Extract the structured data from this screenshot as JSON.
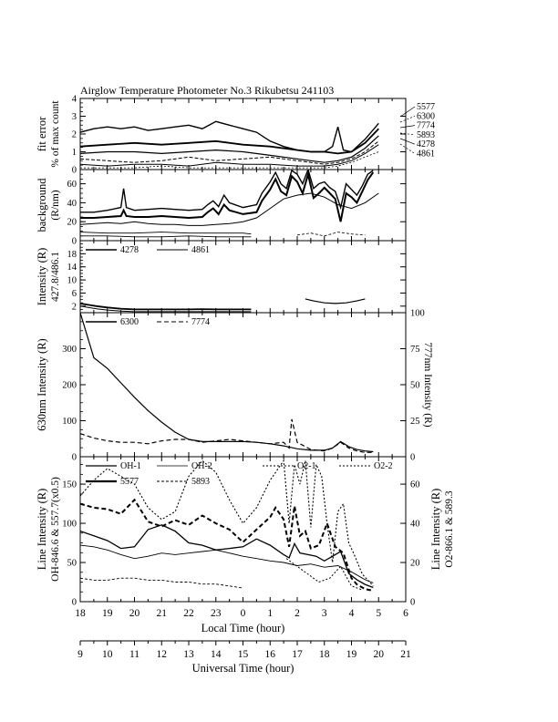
{
  "title": "Airglow Temperature Photometer No.3   Rikubetsu    241103",
  "x_axis": {
    "local_label": "Local Time (hour)",
    "local_ticks": [
      "18",
      "19",
      "20",
      "21",
      "22",
      "23",
      "0",
      "1",
      "2",
      "3",
      "4",
      "5",
      "6"
    ],
    "ut_label": "Universal Time (hour)",
    "ut_ticks": [
      "9",
      "10",
      "11",
      "12",
      "13",
      "14",
      "15",
      "16",
      "17",
      "18",
      "19",
      "20",
      "21"
    ]
  },
  "colors": {
    "line": "#000000",
    "background": "#ffffff"
  },
  "chart_data": [
    {
      "type": "line",
      "panel": "fit-error",
      "ylabel": "fit error",
      "ylabel2": "% of max count",
      "yticks": [
        "0",
        "1",
        "2",
        "3",
        "4"
      ],
      "ylim": [
        0,
        4
      ],
      "right_labels": [
        "5577",
        "6300",
        "7774",
        "5893",
        "4278",
        "4861"
      ],
      "x_units": "hours since 18 LT",
      "series": [
        {
          "name": "5577",
          "x": [
            0,
            0.5,
            1,
            1.5,
            2,
            2.5,
            3,
            3.5,
            4,
            4.5,
            5,
            5.5,
            6,
            6.5,
            7,
            7.5,
            8,
            8.5,
            9,
            9.3,
            9.5,
            9.7,
            10,
            10.5,
            11
          ],
          "y": [
            2.1,
            2.3,
            2.4,
            2.3,
            2.4,
            2.2,
            2.3,
            2.4,
            2.5,
            2.3,
            2.7,
            2.5,
            2.3,
            2.1,
            1.6,
            1.3,
            1.1,
            1.0,
            1.0,
            1.3,
            2.4,
            1.1,
            1.0,
            1.7,
            2.6
          ]
        },
        {
          "name": "6300",
          "x": [
            0,
            1,
            2,
            3,
            4,
            5,
            6,
            7,
            8,
            8.5,
            9,
            9.5,
            10,
            10.5,
            11
          ],
          "y": [
            1.3,
            1.4,
            1.5,
            1.4,
            1.5,
            1.6,
            1.4,
            1.3,
            1.1,
            1.0,
            1.0,
            0.9,
            1.0,
            1.5,
            2.3
          ]
        },
        {
          "name": "7774",
          "x": [
            0,
            1,
            2,
            3,
            4,
            5,
            6,
            7,
            8,
            8.5,
            9,
            9.5,
            10,
            10.5,
            11
          ],
          "y": [
            0.9,
            1.0,
            1.0,
            0.9,
            1.0,
            1.1,
            1.0,
            0.8,
            0.6,
            0.5,
            0.4,
            0.5,
            0.7,
            1.2,
            1.9
          ]
        },
        {
          "name": "5893",
          "x": [
            0,
            1,
            2,
            3,
            4,
            5,
            6,
            7,
            8,
            8.5,
            9,
            9.5,
            10,
            10.5,
            11
          ],
          "y": [
            0.6,
            0.5,
            0.4,
            0.5,
            0.7,
            0.5,
            0.6,
            0.7,
            0.5,
            0.4,
            0.3,
            0.4,
            0.6,
            1.0,
            1.6
          ]
        },
        {
          "name": "4278",
          "x": [
            0,
            1,
            2,
            3,
            4,
            5,
            6,
            7,
            8,
            9,
            9.5,
            10,
            10.5,
            11
          ],
          "y": [
            0.3,
            0.2,
            0.3,
            0.3,
            0.2,
            0.4,
            0.3,
            0.3,
            0.2,
            0.2,
            0.3,
            0.5,
            0.9,
            1.4
          ]
        },
        {
          "name": "4861",
          "x": [
            0,
            1,
            2,
            3,
            4,
            5,
            6,
            7,
            8,
            9,
            9.5,
            10,
            10.5,
            11
          ],
          "y": [
            0.1,
            0.1,
            0.1,
            0.2,
            0.1,
            0.1,
            0.1,
            0.1,
            0.1,
            0.1,
            0.2,
            0.4,
            0.7,
            1.0
          ]
        }
      ]
    },
    {
      "type": "line",
      "panel": "background",
      "ylabel": "background",
      "ylabel2": "(R/nm)",
      "yticks": [
        "0",
        "20",
        "40",
        "60"
      ],
      "ylim": [
        0,
        75
      ],
      "series": [
        {
          "name": "OH-1",
          "x": [
            0,
            0.5,
            1,
            1.5,
            1.6,
            1.7,
            2,
            2.5,
            3,
            3.5,
            4,
            4.5,
            4.7,
            4.9,
            5.1,
            5.3,
            5.5,
            6,
            6.5,
            6.7,
            7,
            7.2,
            7.4,
            7.6,
            7.8,
            8,
            8.2,
            8.4,
            8.6,
            8.8,
            9,
            9.2,
            9.4,
            9.6,
            9.8,
            10,
            10.2,
            10.4,
            10.6,
            10.8
          ],
          "y": [
            30,
            30,
            32,
            35,
            55,
            35,
            32,
            33,
            34,
            33,
            32,
            33,
            38,
            42,
            36,
            48,
            40,
            35,
            38,
            50,
            62,
            72,
            60,
            55,
            74,
            70,
            60,
            75,
            55,
            60,
            62,
            56,
            52,
            35,
            60,
            54,
            48,
            58,
            70,
            74
          ]
        },
        {
          "name": "OH-2",
          "x": [
            0,
            0.5,
            1,
            1.5,
            1.6,
            1.7,
            2,
            2.5,
            3,
            3.5,
            4,
            4.5,
            4.7,
            4.9,
            5.1,
            5.3,
            5.5,
            6,
            6.5,
            6.7,
            7,
            7.2,
            7.4,
            7.6,
            7.8,
            8,
            8.2,
            8.4,
            8.6,
            8.8,
            9,
            9.2,
            9.4,
            9.6,
            9.8,
            10,
            10.2,
            10.4,
            10.6,
            10.8
          ],
          "y": [
            24,
            24,
            25,
            26,
            32,
            26,
            25,
            25,
            26,
            25,
            24,
            25,
            30,
            34,
            28,
            38,
            32,
            28,
            30,
            42,
            54,
            65,
            52,
            48,
            68,
            62,
            50,
            70,
            45,
            50,
            56,
            50,
            44,
            20,
            50,
            46,
            40,
            52,
            64,
            72
          ]
        },
        {
          "name": "O2-1",
          "x": [
            0,
            0.5,
            1,
            1.5,
            2,
            2.5,
            3,
            3.5,
            4,
            4.5,
            5,
            5.5,
            6,
            6.5,
            7,
            7.5,
            8,
            8.5,
            9,
            9.5,
            10,
            10.5,
            11
          ],
          "y": [
            17,
            18,
            19,
            18,
            20,
            18,
            17,
            17,
            16,
            16,
            17,
            18,
            20,
            24,
            34,
            44,
            48,
            50,
            46,
            38,
            34,
            40,
            50
          ]
        },
        {
          "name": "O2-2",
          "x": [
            0,
            1,
            2,
            3,
            4,
            5,
            6,
            6.3
          ],
          "y": [
            9,
            8,
            8,
            9,
            8,
            8,
            8,
            7
          ]
        },
        {
          "name": "5577",
          "x": [
            0,
            1,
            2,
            3,
            4,
            5,
            6,
            6.3
          ],
          "y": [
            5,
            5,
            4,
            4,
            5,
            4,
            4,
            4
          ]
        },
        {
          "name": "5893",
          "x": [
            8,
            8.5,
            9,
            9.5,
            10,
            10.5
          ],
          "y": [
            6,
            8,
            5,
            9,
            7,
            6
          ]
        }
      ]
    },
    {
      "type": "line",
      "panel": "blue-green-intensity",
      "ylabel": "Intensity (R)",
      "ylabel2": "427.8/486.1",
      "yticks": [
        "2",
        "6",
        "10",
        "14",
        "18"
      ],
      "ylim": [
        0,
        22
      ],
      "legend": [
        "4278",
        "4861"
      ],
      "series": [
        {
          "name": "4278",
          "x": [
            0,
            0.3,
            0.6,
            1,
            1.5,
            2,
            3,
            4,
            4.5,
            5,
            5.5,
            6,
            6.3
          ],
          "y": [
            2.8,
            2.4,
            2.0,
            1.6,
            1.2,
            1.0,
            1.0,
            1.0,
            1.1,
            1.0,
            1.0,
            1.0,
            1.0
          ]
        },
        {
          "name": "4861",
          "x": [
            0,
            0.3,
            0.6,
            1,
            1.5,
            2,
            3,
            4,
            5,
            6,
            6.3
          ],
          "y": [
            2.0,
            1.6,
            1.2,
            0.8,
            0.5,
            0.3,
            0.3,
            0.3,
            0.3,
            0.3,
            0.3
          ]
        },
        {
          "name": "4278-dawn",
          "x": [
            8.3,
            8.6,
            9,
            9.4,
            9.8,
            10.2,
            10.5
          ],
          "y": [
            4.2,
            3.6,
            3.0,
            2.8,
            3.0,
            3.6,
            4.2
          ]
        }
      ]
    },
    {
      "type": "line",
      "panel": "red-oxygen-intensity",
      "ylabel": "630nm Intensity (R)",
      "ylabel2": "777nm Intensity (R)",
      "yticks": [
        "0",
        "100",
        "200",
        "300"
      ],
      "ylim": [
        0,
        400
      ],
      "yticks_right": [
        "0",
        "25",
        "50",
        "75",
        "100"
      ],
      "ylim_right": [
        0,
        100
      ],
      "legend": [
        "6300",
        "7774"
      ],
      "series": [
        {
          "name": "6300",
          "x": [
            0,
            0.5,
            1,
            1.5,
            2,
            2.5,
            3,
            3.5,
            4,
            4.5,
            5,
            5.5,
            6,
            6.5,
            7,
            7.5,
            8,
            8.5,
            9,
            9.3,
            9.6,
            9.9,
            10.2,
            10.5,
            10.8
          ],
          "y": [
            400,
            275,
            245,
            205,
            165,
            128,
            96,
            68,
            48,
            42,
            42,
            42,
            42,
            40,
            36,
            30,
            22,
            18,
            18,
            24,
            42,
            28,
            20,
            16,
            14
          ]
        },
        {
          "name": "7774",
          "axis": "right",
          "x": [
            0,
            0.5,
            1,
            1.5,
            2,
            2.5,
            3,
            3.5,
            4,
            4.5,
            5,
            5.5,
            6,
            6.5,
            7,
            7.5,
            7.7,
            7.8,
            8,
            8.5,
            9,
            9.3,
            9.6,
            9.9,
            10.2,
            10.5,
            10.8
          ],
          "y": [
            16,
            13,
            11,
            10,
            10,
            9,
            11,
            12,
            12,
            10,
            11,
            12,
            11,
            10,
            9,
            10,
            6,
            26,
            10,
            5,
            4,
            6,
            10,
            6,
            4,
            3,
            3
          ]
        }
      ]
    },
    {
      "type": "line",
      "panel": "line-intensity",
      "ylabel": "Line Intensity (R)",
      "ylabel2": "OH-846.6 & 557.7(x0.5)",
      "yticks": [
        "0",
        "50",
        "100",
        "150"
      ],
      "ylim": [
        0,
        185
      ],
      "ylabel_right": "Line Intensity (R)",
      "ylabel_right2": "O2-866.1 & 589.3",
      "yticks_right": [
        "0",
        "20",
        "40",
        "60"
      ],
      "ylim_right": [
        0,
        74
      ],
      "legend": [
        "OH-1",
        "OH-2",
        "O2-1",
        "O2-2",
        "5577",
        "5893"
      ],
      "series": [
        {
          "name": "OH-1",
          "x": [
            0,
            0.5,
            1,
            1.5,
            2,
            2.5,
            3,
            3.5,
            4,
            4.5,
            5,
            5.5,
            6,
            6.5,
            7,
            7.5,
            7.7,
            7.9,
            8.1,
            8.4,
            8.7,
            9,
            9.3,
            9.6,
            9.9,
            10.2,
            10.5,
            10.8
          ],
          "y": [
            90,
            84,
            78,
            68,
            70,
            92,
            98,
            90,
            75,
            72,
            66,
            68,
            70,
            80,
            72,
            60,
            56,
            74,
            62,
            60,
            58,
            52,
            58,
            64,
            36,
            28,
            22,
            18
          ]
        },
        {
          "name": "OH-2",
          "x": [
            0,
            0.5,
            1,
            1.5,
            2,
            2.5,
            3,
            3.5,
            4,
            4.5,
            5,
            5.5,
            6,
            6.5,
            7,
            7.5,
            8,
            8.5,
            9,
            9.5,
            10,
            10.5,
            10.8
          ],
          "y": [
            72,
            70,
            66,
            60,
            55,
            58,
            62,
            60,
            62,
            64,
            66,
            62,
            58,
            55,
            52,
            50,
            46,
            48,
            44,
            46,
            38,
            28,
            24
          ]
        },
        {
          "name": "O2-1",
          "axis": "right",
          "x": [
            0,
            0.5,
            1,
            1.5,
            2,
            2.5,
            3,
            3.5,
            4,
            4.5,
            5,
            5.5,
            6,
            6.5,
            7,
            7.5,
            7.7,
            7.9,
            8.1,
            8.3,
            8.5,
            8.7,
            8.9,
            9.1,
            9.3,
            9.5,
            9.7,
            9.9,
            10.1,
            10.4,
            10.8
          ],
          "y": [
            54,
            62,
            68,
            64,
            60,
            48,
            42,
            46,
            64,
            72,
            66,
            52,
            40,
            48,
            62,
            72,
            40,
            70,
            60,
            72,
            38,
            70,
            64,
            40,
            20,
            46,
            50,
            30,
            24,
            14,
            8
          ]
        },
        {
          "name": "O2-2",
          "axis": "right",
          "x": [
            7.6,
            8,
            8.4,
            8.8,
            9.2,
            9.6,
            10,
            10.4
          ],
          "y": [
            22,
            18,
            14,
            10,
            12,
            18,
            8,
            6
          ]
        },
        {
          "name": "5577",
          "x": [
            0,
            0.5,
            1,
            1.5,
            2,
            2.5,
            3,
            3.5,
            4,
            4.5,
            5,
            5.5,
            6,
            6.5,
            7,
            7.2,
            7.5,
            7.7,
            7.9,
            8.1,
            8.3,
            8.5,
            8.8,
            9.1,
            9.4,
            9.7,
            10,
            10.2,
            10.5,
            10.8
          ],
          "y": [
            125,
            120,
            118,
            112,
            130,
            102,
            96,
            104,
            98,
            110,
            100,
            92,
            76,
            92,
            108,
            120,
            105,
            70,
            122,
            84,
            90,
            68,
            72,
            100,
            70,
            62,
            30,
            22,
            16,
            14
          ]
        },
        {
          "name": "5893",
          "axis": "right",
          "x": [
            0,
            0.5,
            1,
            1.5,
            2,
            2.5,
            3,
            3.5,
            4,
            4.5,
            5,
            5.5,
            6
          ],
          "y": [
            12,
            11,
            11,
            12,
            12,
            11,
            11,
            10,
            10,
            9,
            9,
            8,
            7
          ]
        }
      ]
    }
  ]
}
